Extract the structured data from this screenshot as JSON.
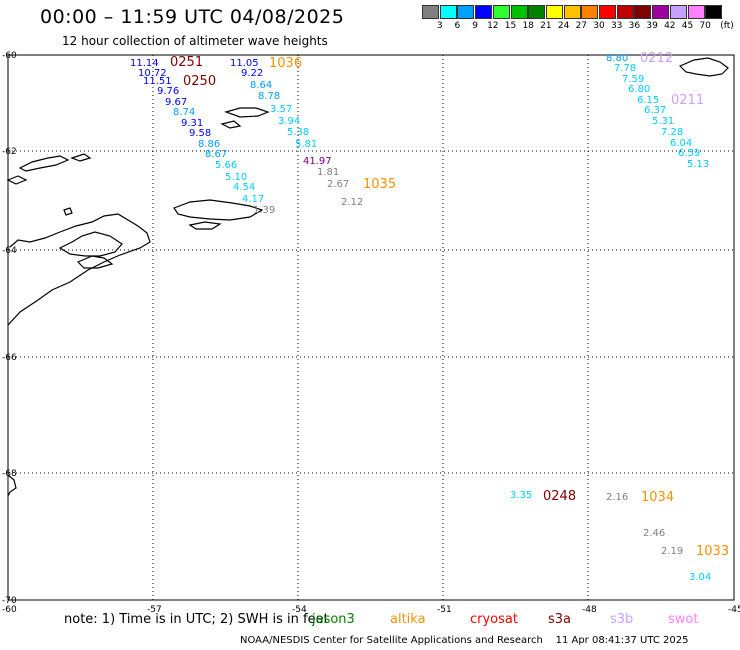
{
  "header": {
    "title": "00:00 – 11:59 UTC 04/08/2025",
    "subtitle": "12 hour collection of altimeter wave heights"
  },
  "legend": {
    "unit": "(ft)",
    "items": [
      {
        "label": "3",
        "color": "#808080"
      },
      {
        "label": "6",
        "color": "#00ffff"
      },
      {
        "label": "9",
        "color": "#00a0ff"
      },
      {
        "label": "12",
        "color": "#0000ff"
      },
      {
        "label": "15",
        "color": "#30ff30"
      },
      {
        "label": "18",
        "color": "#00c000"
      },
      {
        "label": "21",
        "color": "#008000"
      },
      {
        "label": "24",
        "color": "#ffff00"
      },
      {
        "label": "27",
        "color": "#ffc000"
      },
      {
        "label": "30",
        "color": "#ff8000"
      },
      {
        "label": "33",
        "color": "#ff0000"
      },
      {
        "label": "36",
        "color": "#c00000"
      },
      {
        "label": "39",
        "color": "#800000"
      },
      {
        "label": "42",
        "color": "#a000a0"
      },
      {
        "label": "45",
        "color": "#c8a0ff"
      },
      {
        "label": "70",
        "color": "#ff80ff"
      },
      {
        "label": "",
        "color": "#000000"
      }
    ]
  },
  "map": {
    "lat_labels": [
      "-60",
      "-62",
      "-64",
      "-66",
      "-68",
      "-70"
    ],
    "lon_labels": [
      "-60",
      "-57",
      "-54",
      "-51",
      "-48",
      "-45"
    ],
    "observations": [
      {
        "t": "11.14",
        "c": "#0000ff"
      },
      {
        "t": "10.72",
        "c": "#0000ff"
      },
      {
        "t": "11.51",
        "c": "#0000ff"
      },
      {
        "t": "9.76",
        "c": "#0000ff"
      },
      {
        "t": "9.67",
        "c": "#0000ff"
      },
      {
        "t": "8.74",
        "c": "#00a0ff"
      },
      {
        "t": "9.31",
        "c": "#0000ff"
      },
      {
        "t": "9.58",
        "c": "#0000ff"
      },
      {
        "t": "8.86",
        "c": "#00a0ff"
      },
      {
        "t": "8.67",
        "c": "#00a0ff"
      },
      {
        "t": "5.66",
        "c": "#00d0ff"
      },
      {
        "t": "5.10",
        "c": "#00d0ff"
      },
      {
        "t": "4.54",
        "c": "#00d0ff"
      },
      {
        "t": "4.17",
        "c": "#00d0ff"
      },
      {
        "t": "1.39",
        "c": "#808080"
      },
      {
        "t": "11.05",
        "c": "#0000ff"
      },
      {
        "t": "9.22",
        "c": "#0000ff"
      },
      {
        "t": "8.64",
        "c": "#00a0ff"
      },
      {
        "t": "8.78",
        "c": "#00a0ff"
      },
      {
        "t": "3.57",
        "c": "#00d0ff"
      },
      {
        "t": "3.94",
        "c": "#00d0ff"
      },
      {
        "t": "5.38",
        "c": "#00d0ff"
      },
      {
        "t": "5.81",
        "c": "#00d0ff"
      },
      {
        "t": "41.97",
        "c": "#800080"
      },
      {
        "t": "1.81",
        "c": "#808080"
      },
      {
        "t": "2.67",
        "c": "#808080"
      },
      {
        "t": "2.12",
        "c": "#808080"
      },
      {
        "t": "8.80",
        "c": "#00a0ff"
      },
      {
        "t": "7.78",
        "c": "#00d0ff"
      },
      {
        "t": "7.59",
        "c": "#00d0ff"
      },
      {
        "t": "6.80",
        "c": "#00d0ff"
      },
      {
        "t": "6.15",
        "c": "#00d0ff"
      },
      {
        "t": "6.37",
        "c": "#00d0ff"
      },
      {
        "t": "5.31",
        "c": "#00d0ff"
      },
      {
        "t": "7.28",
        "c": "#00d0ff"
      },
      {
        "t": "6.04",
        "c": "#00d0ff"
      },
      {
        "t": "6.59",
        "c": "#00d0ff"
      },
      {
        "t": "5.13",
        "c": "#00d0ff"
      },
      {
        "t": "3.35",
        "c": "#00d0ff"
      },
      {
        "t": "2.16",
        "c": "#808080"
      },
      {
        "t": "2.46",
        "c": "#808080"
      },
      {
        "t": "2.19",
        "c": "#808080"
      },
      {
        "t": "3.04",
        "c": "#00d0ff"
      }
    ],
    "pass_times": [
      {
        "t": "0251",
        "c": "#800000"
      },
      {
        "t": "0250",
        "c": "#800000"
      },
      {
        "t": "1036",
        "c": "#ff9000"
      },
      {
        "t": "1035",
        "c": "#ff9000"
      },
      {
        "t": "0212",
        "c": "#c8a0ff"
      },
      {
        "t": "0211",
        "c": "#c8a0ff"
      },
      {
        "t": "0248",
        "c": "#800000"
      },
      {
        "t": "1034",
        "c": "#ff9000"
      },
      {
        "t": "1033",
        "c": "#ff9000"
      }
    ]
  },
  "footer": {
    "note": "note: 1) Time is in UTC; 2) SWH is in feet",
    "satellites": [
      {
        "name": "jason3",
        "color": "#008000"
      },
      {
        "name": "altika",
        "color": "#ff9000"
      },
      {
        "name": "cryosat",
        "color": "#ff0000"
      },
      {
        "name": "s3a",
        "color": "#800000"
      },
      {
        "name": "s3b",
        "color": "#c8a0ff"
      },
      {
        "name": "swot",
        "color": "#ff80ff"
      }
    ],
    "credit": "NOAA/NESDIS Center for Satellite Applications and Research",
    "timestamp": "11 Apr 08:41:37 UTC 2025"
  }
}
